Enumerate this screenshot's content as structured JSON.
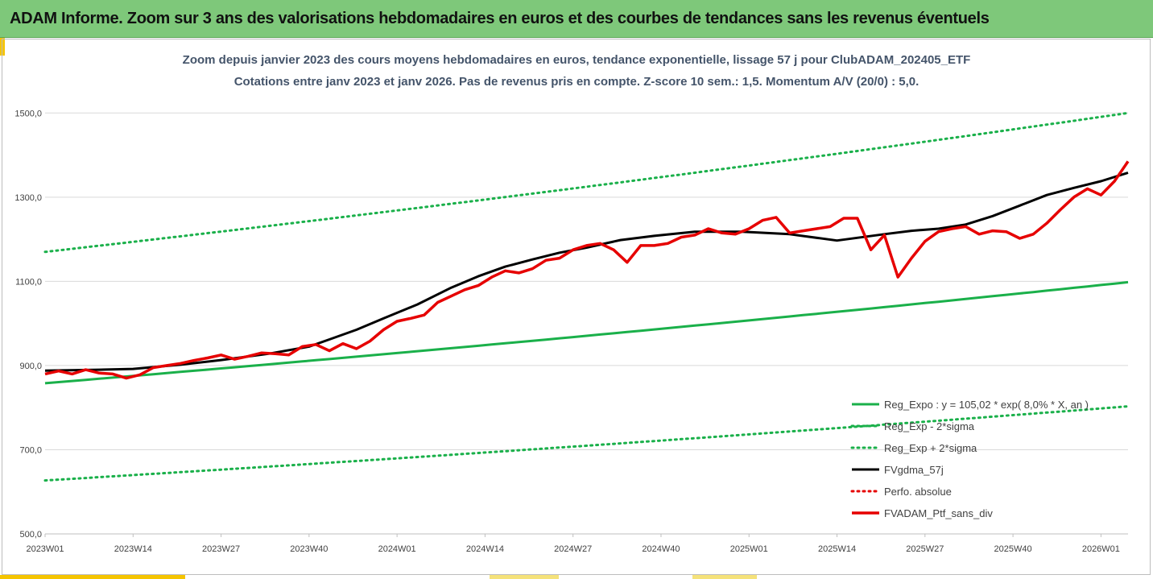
{
  "banner": {
    "title": "ADAM Informe. Zoom sur 3 ans des valorisations hebdomadaires en euros et des courbes de tendances sans les revenus éventuels"
  },
  "chart_data": {
    "type": "line",
    "title": "Zoom depuis janvier 2023 des cours moyens hebdomadaires en euros, tendance exponentielle, lissage 57 j pour ClubADAM_202405_ETF",
    "subtitle": "Cotations entre janv 2023 et janv 2026. Pas de revenus pris en compte. Z-score 10 sem.: 1,5. Momentum A/V (20/0) : 5,0.",
    "xlabel": "",
    "ylabel": "",
    "ylim": [
      500,
      1600
    ],
    "y_ticks": [
      "500,0",
      "700,0",
      "900,0",
      "1100,0",
      "1300,0",
      "1500,0"
    ],
    "x_ticks": [
      "2023W01",
      "2023W14",
      "2023W27",
      "2023W40",
      "2024W01",
      "2024W14",
      "2024W27",
      "2024W40",
      "2025W01",
      "2025W14",
      "2025W27",
      "2025W40",
      "2026W01"
    ],
    "x_range_weeks": [
      0,
      160
    ],
    "grid": "horizontal",
    "legend_position": "bottom-right, inside plot",
    "series": [
      {
        "name": "Reg_Expo : y = 105,02 * exp( 8,0% * X, an )",
        "style": "solid",
        "color": "#1ab04a",
        "x": [
          0,
          160
        ],
        "values": [
          858,
          1098
        ],
        "curve": "exponential"
      },
      {
        "name": "Reg_Exp - 2*sigma",
        "style": "dotted",
        "color": "#1ab04a",
        "x": [
          0,
          160
        ],
        "values": [
          627,
          803
        ],
        "curve": "exponential"
      },
      {
        "name": "Reg_Exp + 2*sigma",
        "style": "dotted",
        "color": "#1ab04a",
        "x": [
          0,
          160
        ],
        "values": [
          1170,
          1500
        ],
        "curve": "exponential"
      },
      {
        "name": "FVgdma_57j",
        "style": "solid",
        "color": "#000000",
        "x": [
          0,
          8,
          13,
          20,
          26,
          33,
          39,
          42,
          46,
          50,
          55,
          60,
          64,
          68,
          72,
          76,
          80,
          85,
          90,
          96,
          103,
          110,
          117,
          124,
          128,
          132,
          136,
          140,
          144,
          148,
          152,
          156,
          160
        ],
        "values": [
          888,
          890,
          892,
          902,
          913,
          928,
          945,
          962,
          985,
          1012,
          1045,
          1085,
          1112,
          1135,
          1152,
          1168,
          1180,
          1198,
          1208,
          1218,
          1218,
          1212,
          1197,
          1212,
          1220,
          1225,
          1235,
          1255,
          1280,
          1305,
          1322,
          1338,
          1358
        ]
      },
      {
        "name": "Perfo. absolue",
        "style": "dotted",
        "color": "#e60000",
        "x": [],
        "values": []
      },
      {
        "name": "FVADAM_Ptf_sans_div",
        "style": "solid",
        "color": "#e60000",
        "x": [
          0,
          2,
          4,
          6,
          8,
          10,
          12,
          14,
          16,
          18,
          20,
          22,
          24,
          26,
          28,
          30,
          32,
          34,
          36,
          38,
          40,
          42,
          44,
          46,
          48,
          50,
          52,
          54,
          56,
          58,
          60,
          62,
          64,
          66,
          68,
          70,
          72,
          74,
          76,
          78,
          80,
          82,
          84,
          86,
          88,
          90,
          92,
          94,
          96,
          98,
          100,
          102,
          104,
          106,
          108,
          110,
          112,
          114,
          116,
          118,
          120,
          122,
          124,
          126,
          128,
          130,
          132,
          134,
          136,
          138,
          140,
          142,
          144,
          146,
          148,
          150,
          152,
          154,
          156,
          158,
          160
        ],
        "values": [
          880,
          887,
          880,
          890,
          882,
          880,
          870,
          878,
          895,
          900,
          905,
          912,
          918,
          925,
          915,
          922,
          930,
          928,
          925,
          945,
          950,
          935,
          952,
          940,
          958,
          985,
          1005,
          1012,
          1020,
          1050,
          1065,
          1080,
          1090,
          1110,
          1125,
          1120,
          1130,
          1150,
          1155,
          1175,
          1185,
          1190,
          1175,
          1145,
          1185,
          1185,
          1190,
          1205,
          1210,
          1225,
          1215,
          1212,
          1225,
          1245,
          1252,
          1215,
          1220,
          1225,
          1230,
          1250,
          1250,
          1175,
          1210,
          1110,
          1155,
          1195,
          1218,
          1225,
          1230,
          1212,
          1220,
          1218,
          1202,
          1212,
          1238,
          1270,
          1300,
          1320,
          1305,
          1338,
          1385
        ]
      }
    ]
  }
}
